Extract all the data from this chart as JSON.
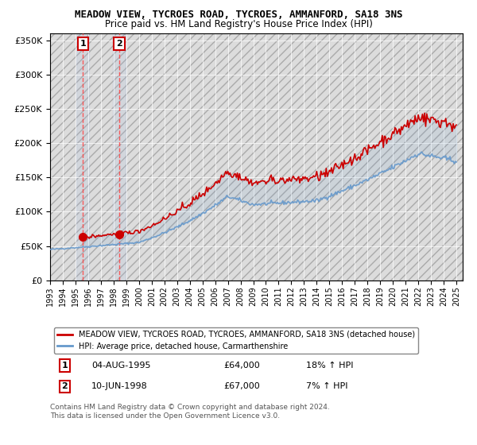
{
  "title": "MEADOW VIEW, TYCROES ROAD, TYCROES, AMMANFORD, SA18 3NS",
  "subtitle": "Price paid vs. HM Land Registry's House Price Index (HPI)",
  "legend_line1": "MEADOW VIEW, TYCROES ROAD, TYCROES, AMMANFORD, SA18 3NS (detached house)",
  "legend_line2": "HPI: Average price, detached house, Carmarthenshire",
  "footnote": "Contains HM Land Registry data © Crown copyright and database right 2024.\nThis data is licensed under the Open Government Licence v3.0.",
  "sale1_label": "1",
  "sale1_date": "04-AUG-1995",
  "sale1_price": "£64,000",
  "sale1_hpi": "18% ↑ HPI",
  "sale1_year": 1995.59,
  "sale1_value": 64000,
  "sale2_label": "2",
  "sale2_date": "10-JUN-1998",
  "sale2_price": "£67,000",
  "sale2_hpi": "7% ↑ HPI",
  "sale2_year": 1998.44,
  "sale2_value": 67000,
  "ylim": [
    0,
    360000
  ],
  "yticks": [
    0,
    50000,
    100000,
    150000,
    200000,
    250000,
    300000,
    350000
  ],
  "hatch_color": "#cccccc",
  "red_line_color": "#cc0000",
  "blue_line_color": "#6699cc",
  "dot_color": "#cc0000",
  "xlim_start": 1993,
  "xlim_end": 2025.5
}
